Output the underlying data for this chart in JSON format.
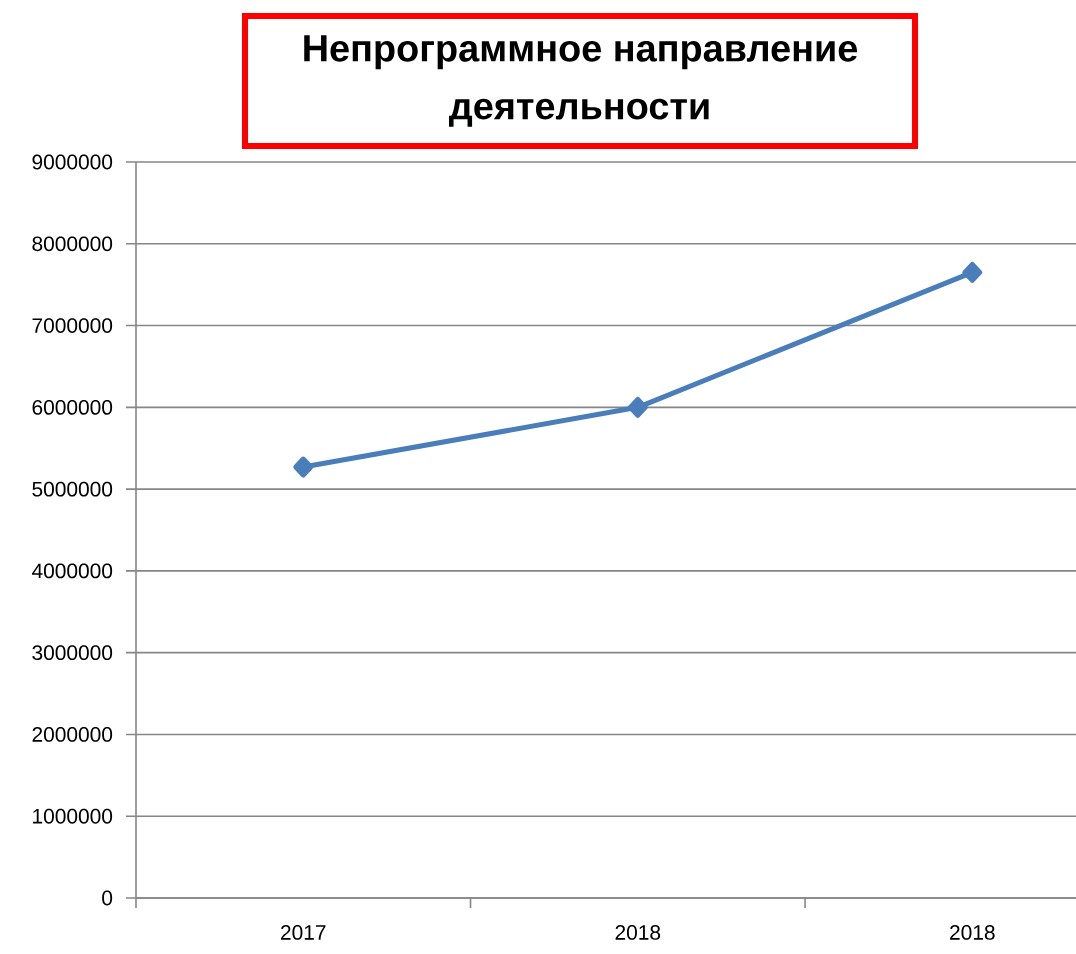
{
  "chart_data": {
    "type": "line",
    "title": "Непрограммное направление деятельности",
    "categories": [
      "2017",
      "2018",
      "2018"
    ],
    "series": [
      {
        "color": "#4a7ebb",
        "values": [
          5270000,
          6000000,
          7650000
        ]
      }
    ],
    "ylim": [
      0,
      9000000
    ],
    "yticks": [
      0,
      1000000,
      2000000,
      3000000,
      4000000,
      5000000,
      6000000,
      7000000,
      8000000,
      9000000
    ],
    "grid": "y",
    "marker": "diamond"
  }
}
